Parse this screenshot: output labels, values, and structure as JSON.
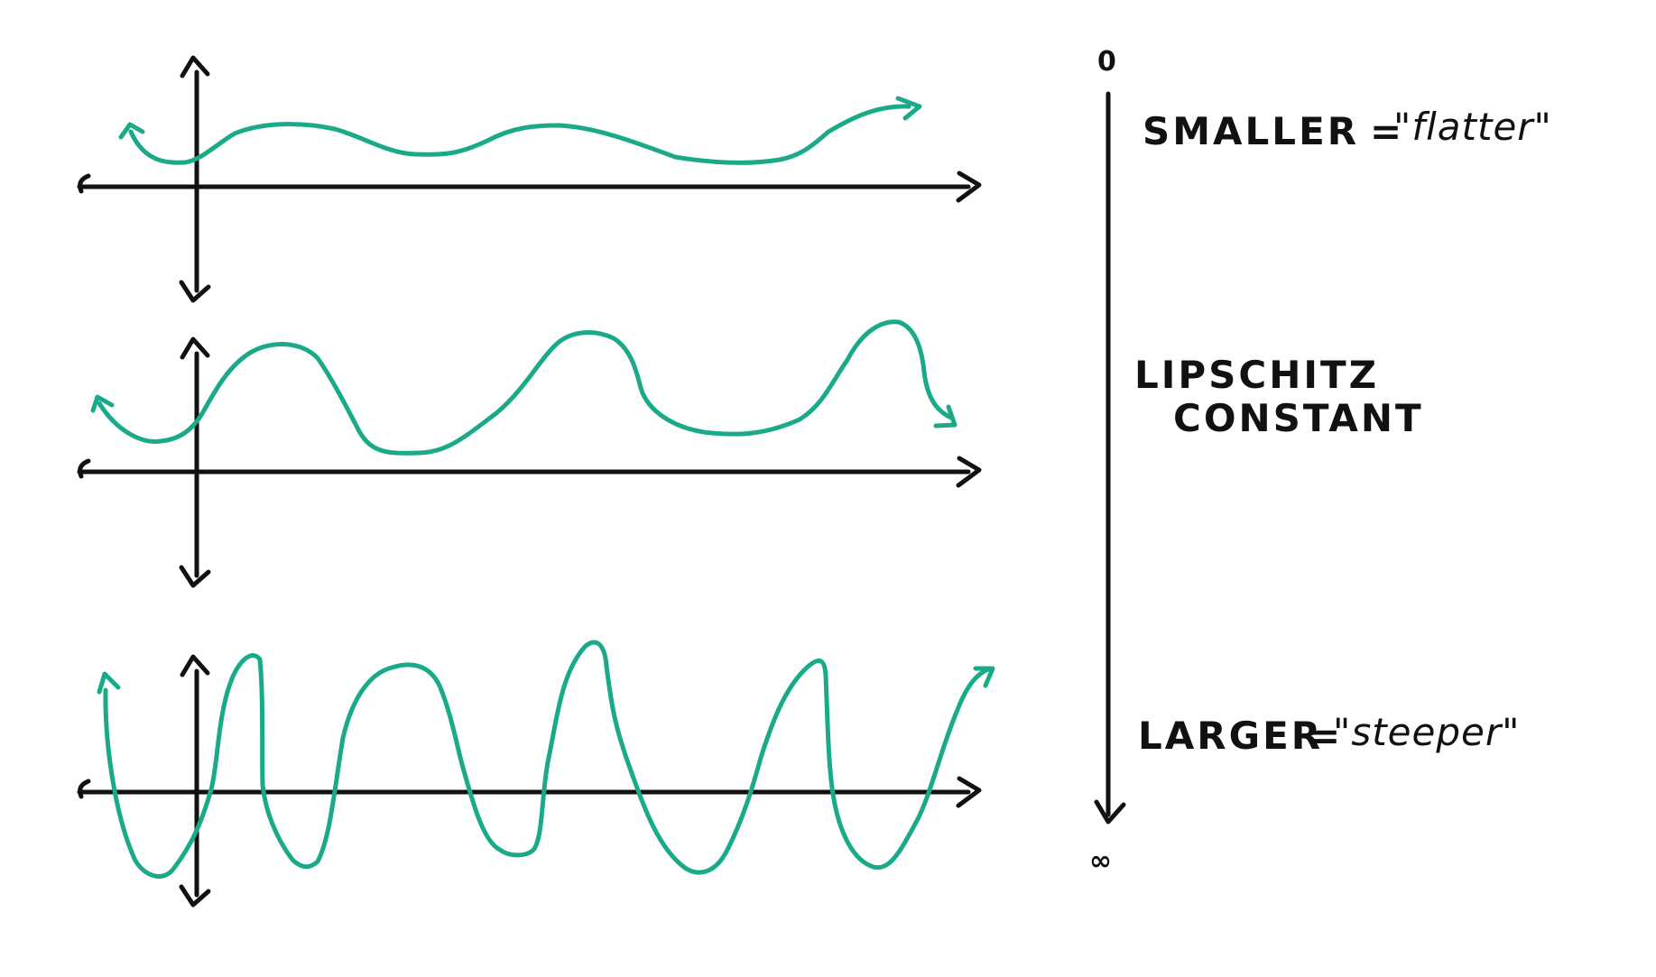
{
  "diagram": {
    "colors": {
      "curve": "#1aaa8a",
      "axis": "#111111",
      "background": "#ffffff"
    },
    "graphs": [
      {
        "name": "flat-graph",
        "description_level": "smaller"
      },
      {
        "name": "medium-graph",
        "description_level": "medium"
      },
      {
        "name": "steep-graph",
        "description_level": "larger"
      }
    ],
    "scale": {
      "top_label": "0",
      "bottom_label": "∞",
      "title_line_1": "LIPSCHITZ",
      "title_line_2": "CONSTANT"
    },
    "notes": {
      "smaller_label": "SMALLER",
      "smaller_equals": "=",
      "smaller_desc": "\"flatter\"",
      "larger_label": "LARGER",
      "larger_equals": "=",
      "larger_desc": "\"steeper\""
    }
  }
}
